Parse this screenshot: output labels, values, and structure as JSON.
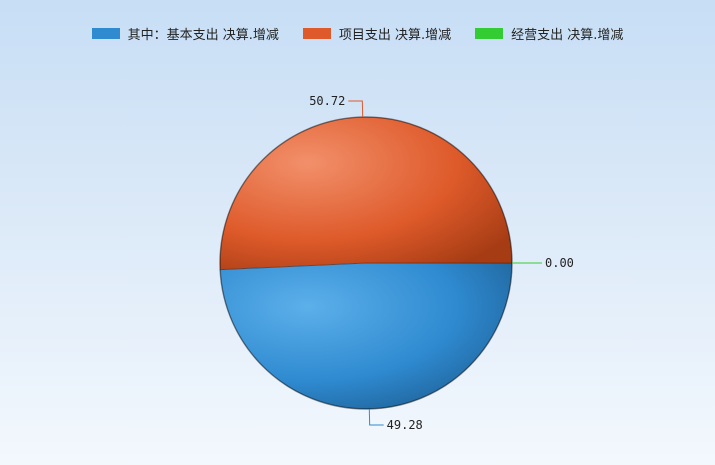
{
  "chart_data": {
    "type": "pie",
    "categories": [
      "其中：基本支出 决算.增减",
      "项目支出 决算.增减",
      "经营支出 决算.增减"
    ],
    "values": [
      49.28,
      50.72,
      0.0
    ],
    "labels": [
      "49.28",
      "50.72",
      "0.00"
    ],
    "colors": [
      "#2f8ad0",
      "#de5a2a",
      "#33cc33"
    ],
    "legend_position": "top"
  }
}
